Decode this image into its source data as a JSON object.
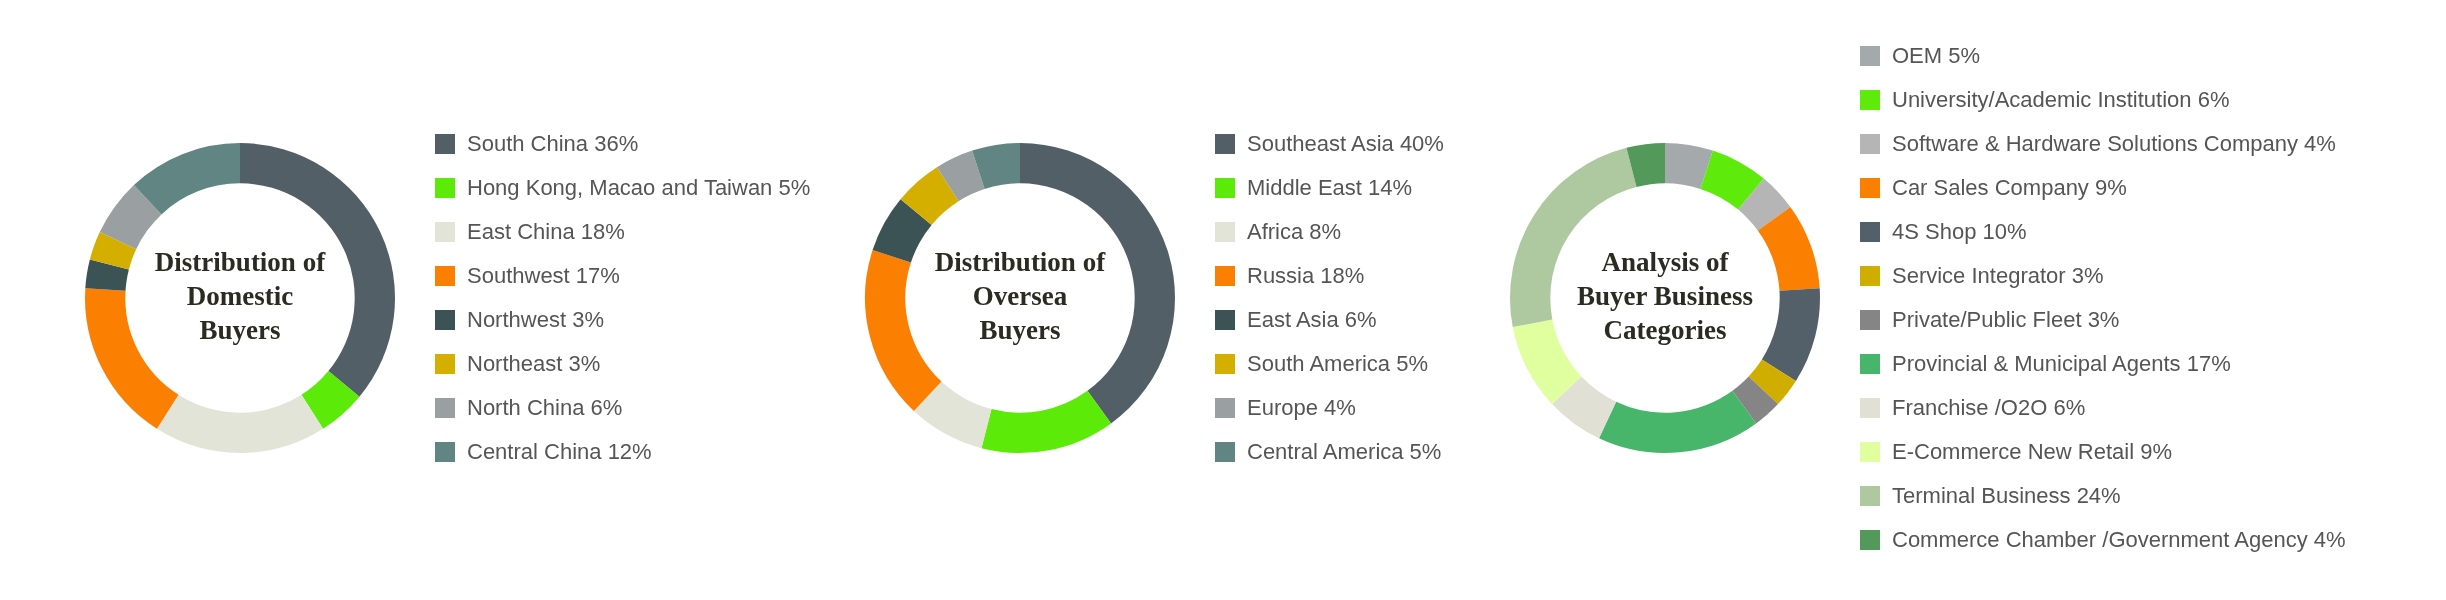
{
  "chart_data": [
    {
      "type": "donut",
      "title": "Distribution of Domestic Buyers",
      "legend": "right",
      "categories": [
        "South China 36%",
        "Hong Kong, Macao and Taiwan 5%",
        "East China 18%",
        "Southwest 17%",
        "Northwest 3%",
        "Northeast 3%",
        "North China 6%",
        "Central China 12%"
      ],
      "values": [
        36,
        5,
        18,
        17,
        3,
        3,
        6,
        12
      ],
      "colors": [
        "#535f66",
        "#5cea08",
        "#e2e4d8",
        "#fb7f00",
        "#3b5354",
        "#d4af00",
        "#9aa0a1",
        "#608582"
      ]
    },
    {
      "type": "donut",
      "title": "Distribution of Oversea Buyers",
      "legend": "right",
      "categories": [
        "Southeast Asia 40%",
        "Middle East 14%",
        "Africa 8%",
        "Russia 18%",
        "East Asia 6%",
        "South America 5%",
        "Europe 4%",
        "Central America 5%"
      ],
      "values": [
        40,
        14,
        8,
        18,
        6,
        5,
        4,
        5
      ],
      "colors": [
        "#535f66",
        "#5cea08",
        "#e2e4d8",
        "#fb7f00",
        "#3b5354",
        "#d4af00",
        "#9aa0a1",
        "#608582"
      ]
    },
    {
      "type": "donut",
      "title": "Analysis of Buyer Business Categories",
      "legend": "right",
      "categories": [
        "OEM 5%",
        "University/Academic Institution 6%",
        "Software & Hardware Solutions Company 4%",
        "Car Sales Company 9%",
        "4S Shop 10%",
        "Service Integrator 3%",
        "Private/Public Fleet  3%",
        "Provincial & Municipal Agents 17%",
        "Franchise /O2O 6%",
        "E-Commerce New Retail 9%",
        "Terminal Business 24%",
        "Commerce Chamber /Government Agency 4%"
      ],
      "values": [
        5,
        6,
        4,
        9,
        10,
        3,
        3,
        17,
        6,
        9,
        24,
        4
      ],
      "colors": [
        "#a4aaab",
        "#5eea0a",
        "#b5b5b5",
        "#fb7f00",
        "#53606a",
        "#d0ae00",
        "#858585",
        "#47b56a",
        "#e0e0d5",
        "#e0ff9f",
        "#aec8a0",
        "#52995a"
      ]
    }
  ]
}
